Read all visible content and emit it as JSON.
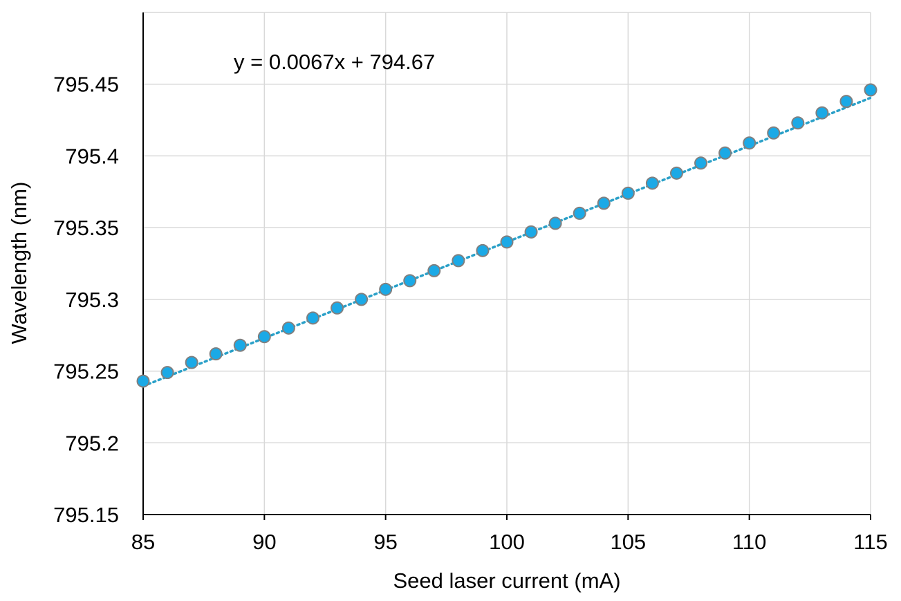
{
  "chart_data": {
    "type": "scatter",
    "title": "",
    "xlabel": "Seed laser current (mA)",
    "ylabel": "Wavelength (nm)",
    "xlim": [
      85,
      115
    ],
    "ylim": [
      795.15,
      795.5
    ],
    "x_ticks": [
      85,
      90,
      95,
      100,
      105,
      110,
      115
    ],
    "y_ticks": [
      795.15,
      795.2,
      795.25,
      795.3,
      795.35,
      795.4,
      795.45
    ],
    "x_tick_labels": [
      "85",
      "90",
      "95",
      "100",
      "105",
      "110",
      "115"
    ],
    "y_tick_labels": [
      "795.15",
      "795.2",
      "795.25",
      "795.3",
      "795.35",
      "795.4",
      "795.45"
    ],
    "grid": true,
    "legend": "none",
    "series": [
      {
        "x": [
          85,
          86,
          87,
          88,
          89,
          90,
          91,
          92,
          93,
          94,
          95,
          96,
          97,
          98,
          99,
          100,
          101,
          102,
          103,
          104,
          105,
          106,
          107,
          108,
          109,
          110,
          111,
          112,
          113,
          114,
          115
        ],
        "y": [
          795.243,
          795.249,
          795.256,
          795.262,
          795.268,
          795.274,
          795.28,
          795.287,
          795.294,
          795.3,
          795.307,
          795.313,
          795.32,
          795.327,
          795.334,
          795.34,
          795.347,
          795.353,
          795.36,
          795.367,
          795.374,
          795.381,
          795.388,
          795.395,
          795.402,
          795.409,
          795.416,
          795.423,
          795.43,
          795.438,
          795.446
        ],
        "marker_color": "#1BA9E6",
        "marker_edge_color": "#808080"
      }
    ],
    "trendline": {
      "type": "linear",
      "slope": 0.0067,
      "intercept": 794.67,
      "color": "#2AA0C8",
      "style": "dotted",
      "equation_label": "y = 0.0067x + 794.67"
    },
    "grid_color": "#D9D9D9",
    "axis_color": "#000000"
  }
}
